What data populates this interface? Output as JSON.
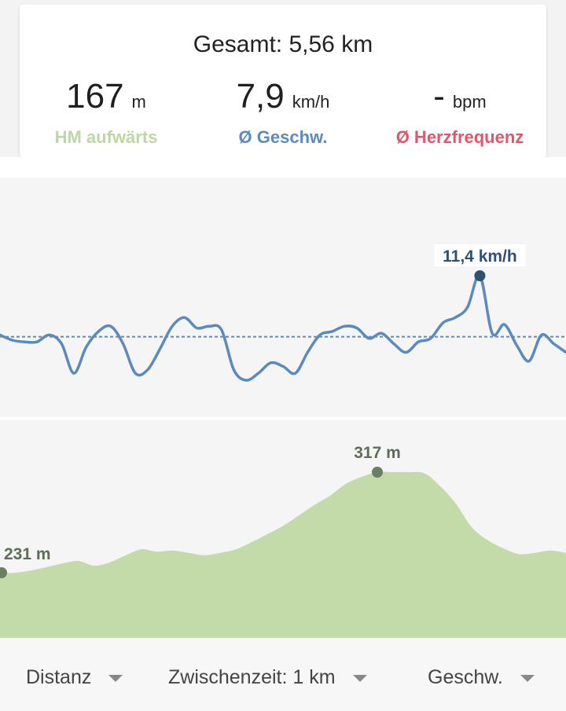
{
  "summary": {
    "total": "Gesamt: 5,56 km",
    "elevation": {
      "value": "167",
      "unit": "m",
      "label": "HM aufwärts"
    },
    "speed": {
      "value": "7,9",
      "unit": "km/h",
      "label": "Ø Geschw."
    },
    "heart_rate": {
      "value": "-",
      "unit": "bpm",
      "label": "Ø Herzfrequenz"
    }
  },
  "colors": {
    "speed_line": "#5b8bbd",
    "speed_marker": "#2f4f73",
    "elevation_fill": "#c2dba9",
    "elevation_marker": "#6b7f62",
    "elevation_label": "#5f6d58"
  },
  "chart_data": [
    {
      "type": "line",
      "series": [
        {
          "values": [
            8.0,
            7.7,
            7.6,
            7.6,
            8.0,
            7.5,
            5.8,
            7.3,
            8.2,
            8.5,
            7.5,
            5.8,
            6.0,
            7.2,
            8.5,
            9.0,
            8.4,
            8.5,
            8.3,
            6.0,
            5.4,
            5.8,
            6.4,
            6.2,
            5.8,
            7.0,
            8.0,
            8.2,
            8.5,
            8.4,
            7.8,
            8.1,
            7.5,
            7.0,
            7.6,
            7.8,
            8.7,
            9.0,
            9.6,
            11.4,
            8.1,
            8.6,
            7.4,
            6.5,
            8.0,
            7.5,
            7.0
          ],
          "min": {
            "value": 5.4
          },
          "max": {
            "value": 11.4,
            "label": "11,4 km/h"
          }
        }
      ],
      "average": 7.9
    },
    {
      "type": "area",
      "series": [
        {
          "values": [
            231,
            231,
            233,
            236,
            239,
            241,
            237,
            240,
            246,
            251,
            249,
            250,
            248,
            246,
            248,
            251,
            257,
            264,
            271,
            280,
            289,
            297,
            307,
            313,
            317,
            317,
            317,
            316,
            305,
            290,
            270,
            259,
            252,
            247,
            248,
            250,
            248
          ],
          "min": {
            "value": 231,
            "label": "231 m"
          },
          "max": {
            "value": 317,
            "label": "317 m"
          }
        }
      ]
    }
  ],
  "controls": {
    "x_axis": "Distanz",
    "split": "Zwischenzeit: 1 km",
    "metric": "Geschw."
  }
}
